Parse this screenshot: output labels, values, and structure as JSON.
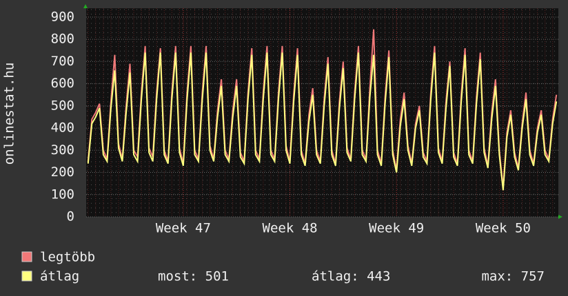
{
  "chart_data": {
    "type": "line",
    "y_label": "onlinestat.hu",
    "categories": [
      null,
      null,
      null,
      null,
      null,
      null,
      null,
      null,
      null,
      null,
      null,
      null,
      null,
      null,
      null,
      null,
      null,
      null,
      null,
      null,
      null,
      null,
      null,
      null,
      null,
      "Week 47",
      null,
      null,
      null,
      null,
      null,
      null,
      null,
      null,
      null,
      null,
      null,
      null,
      null,
      null,
      null,
      null,
      null,
      null,
      null,
      null,
      null,
      null,
      null,
      null,
      null,
      null,
      null,
      "Week 48",
      null,
      null,
      null,
      null,
      null,
      null,
      null,
      null,
      null,
      null,
      null,
      null,
      null,
      null,
      null,
      null,
      null,
      null,
      null,
      null,
      null,
      null,
      null,
      null,
      null,
      null,
      null,
      "Week 49",
      null,
      null,
      null,
      null,
      null,
      null,
      null,
      null,
      null,
      null,
      null,
      null,
      null,
      null,
      null,
      null,
      null,
      null,
      null,
      null,
      null,
      null,
      null,
      null,
      null,
      null,
      null,
      "Week 50",
      null,
      null,
      null,
      null,
      null,
      null,
      null,
      null,
      null,
      null,
      null,
      null,
      null,
      null
    ],
    "series": [
      {
        "name": "legtöbb",
        "color": "#f07878",
        "values": [
          250,
          440,
          470,
          510,
          300,
          260,
          520,
          730,
          330,
          260,
          500,
          690,
          300,
          270,
          560,
          770,
          310,
          270,
          560,
          760,
          300,
          250,
          560,
          770,
          310,
          240,
          560,
          770,
          300,
          260,
          560,
          770,
          320,
          260,
          480,
          620,
          300,
          260,
          480,
          620,
          290,
          250,
          560,
          760,
          300,
          260,
          560,
          770,
          300,
          260,
          560,
          770,
          320,
          250,
          550,
          760,
          300,
          240,
          460,
          580,
          300,
          250,
          530,
          720,
          300,
          240,
          520,
          700,
          310,
          260,
          560,
          770,
          300,
          260,
          580,
          845,
          300,
          240,
          540,
          750,
          300,
          210,
          440,
          560,
          320,
          240,
          420,
          500,
          290,
          250,
          560,
          770,
          310,
          250,
          520,
          700,
          290,
          240,
          550,
          760,
          300,
          250,
          540,
          740,
          310,
          230,
          470,
          620,
          300,
          130,
          380,
          480,
          290,
          220,
          420,
          560,
          300,
          240,
          400,
          480,
          300,
          260,
          440,
          550
        ]
      },
      {
        "name": "átlag",
        "color": "#ffff80",
        "values": [
          240,
          420,
          450,
          490,
          280,
          250,
          490,
          660,
          310,
          250,
          470,
          650,
          280,
          250,
          530,
          740,
          290,
          250,
          530,
          740,
          280,
          240,
          530,
          740,
          290,
          230,
          530,
          740,
          280,
          250,
          530,
          740,
          300,
          250,
          450,
          590,
          280,
          250,
          450,
          590,
          270,
          240,
          530,
          730,
          280,
          250,
          530,
          740,
          280,
          250,
          530,
          740,
          300,
          240,
          520,
          730,
          280,
          230,
          430,
          550,
          280,
          240,
          500,
          690,
          280,
          230,
          490,
          670,
          290,
          250,
          530,
          740,
          280,
          250,
          540,
          730,
          280,
          230,
          510,
          720,
          280,
          200,
          410,
          530,
          300,
          230,
          400,
          480,
          270,
          240,
          530,
          740,
          290,
          240,
          490,
          680,
          270,
          230,
          520,
          730,
          280,
          240,
          510,
          710,
          290,
          220,
          440,
          590,
          280,
          120,
          360,
          460,
          270,
          210,
          400,
          530,
          280,
          230,
          380,
          460,
          280,
          250,
          420,
          520
        ]
      }
    ],
    "stats": [
      "most: 501",
      "átlag: 443",
      "max: 757"
    ],
    "ylim": [
      0,
      940
    ],
    "yticks": [
      0,
      100,
      200,
      300,
      400,
      500,
      600,
      700,
      800,
      900
    ],
    "grid": true
  }
}
